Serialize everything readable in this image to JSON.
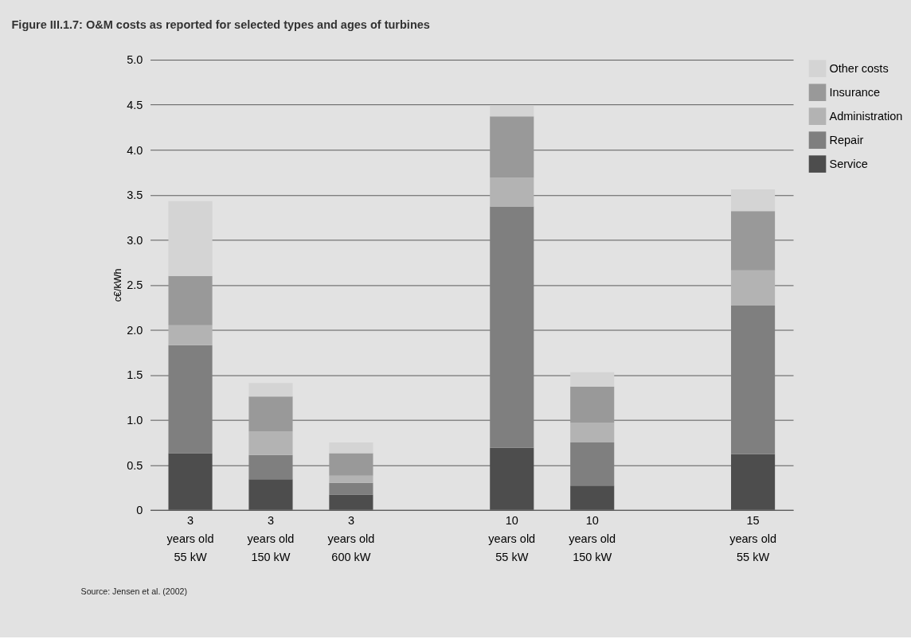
{
  "chart_data": {
    "type": "bar",
    "title": "Figure III.1.7: O&M costs as reported for selected types and ages of turbines",
    "ylabel": "c€/kWh",
    "categories": [
      "3\nyears old\n55 kW",
      "3\nyears old\n150 kW",
      "3\nyears old\n600 kW",
      null,
      "10\nyears old\n55 kW",
      "10\nyears old\n150 kW",
      null,
      "15\nyears old\n55 kW"
    ],
    "stacked": true,
    "series": [
      {
        "name": "Service",
        "color": "#4d4d4d",
        "values": [
          0.63,
          0.34,
          0.17,
          null,
          0.69,
          0.27,
          null,
          0.62
        ]
      },
      {
        "name": "Repair",
        "color": "#7f7f7f",
        "values": [
          1.2,
          0.27,
          0.13,
          null,
          2.68,
          0.48,
          null,
          1.65
        ]
      },
      {
        "name": "Administration",
        "color": "#b3b3b3",
        "values": [
          0.22,
          0.26,
          0.08,
          null,
          0.32,
          0.22,
          null,
          0.39
        ]
      },
      {
        "name": "Insurance",
        "color": "#999999",
        "values": [
          0.55,
          0.39,
          0.25,
          null,
          0.68,
          0.4,
          null,
          0.66
        ]
      },
      {
        "name": "Other costs",
        "color": "#d4d4d4",
        "values": [
          0.83,
          0.15,
          0.12,
          null,
          0.12,
          0.16,
          null,
          0.24
        ]
      }
    ],
    "ylim": [
      0,
      5
    ],
    "yticks": [
      0,
      0.5,
      {
        "value": 1,
        "label": "1.0"
      },
      1.5,
      {
        "value": 2,
        "label": "2.0"
      },
      2.5,
      {
        "value": 3,
        "label": "3.0"
      },
      3.5,
      {
        "value": 4,
        "label": "4.0"
      },
      4.5,
      {
        "value": 5,
        "label": "5.0"
      }
    ],
    "grid": "y",
    "legend": "top right",
    "annotations": [
      "Source: Jensen et al. (2002)"
    ]
  }
}
